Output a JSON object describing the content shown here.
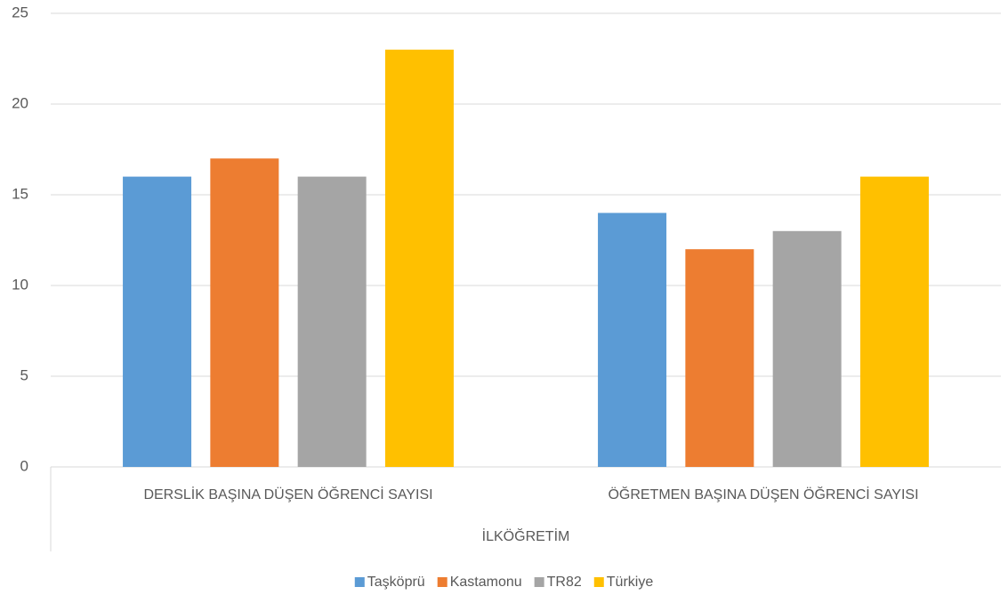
{
  "chart_data": {
    "type": "bar",
    "categories": [
      "DERSLİK BAŞINA DÜŞEN ÖĞRENCİ SAYISI",
      "ÖĞRETMEN BAŞINA DÜŞEN ÖĞRENCİ SAYISI"
    ],
    "group_label": "İLKÖĞRETİM",
    "series": [
      {
        "name": "Taşköprü",
        "color": "#5b9bd5",
        "values": [
          16,
          14
        ]
      },
      {
        "name": "Kastamonu",
        "color": "#ed7d31",
        "values": [
          17,
          12
        ]
      },
      {
        "name": "TR82",
        "color": "#a5a5a5",
        "values": [
          16,
          13
        ]
      },
      {
        "name": "Türkiye",
        "color": "#ffc000",
        "values": [
          23,
          16
        ]
      }
    ],
    "ylim": [
      0,
      25
    ],
    "yticks": [
      0,
      5,
      10,
      15,
      20,
      25
    ],
    "grid": true,
    "legend": "bottom"
  }
}
